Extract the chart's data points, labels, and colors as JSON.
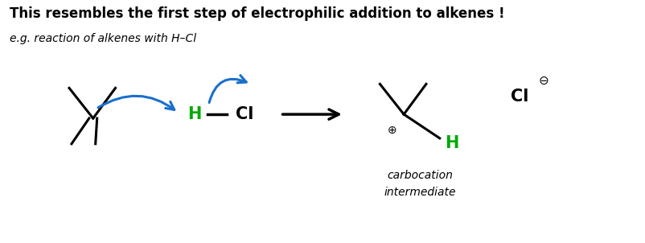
{
  "title": "This resembles the first step of electrophilic addition to alkenes !",
  "subtitle": "e.g. reaction of alkenes with H–Cl",
  "title_fontsize": 12,
  "subtitle_fontsize": 10,
  "bg_color": "#ffffff",
  "black": "#000000",
  "blue": "#1a6fcc",
  "green": "#00aa00",
  "carbocation_label": "carbocation\nintermediate",
  "figw": 8.02,
  "figh": 3.02,
  "dpi": 100
}
